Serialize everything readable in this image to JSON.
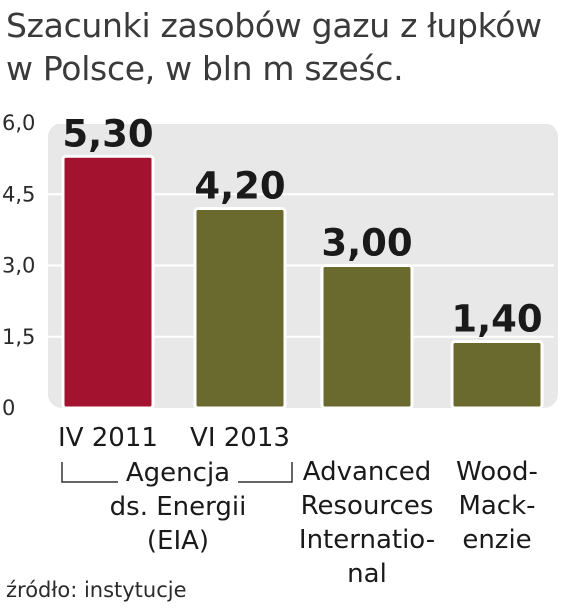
{
  "title_lines": [
    "Szacunki zasobów gazu z łupków",
    "w Polsce, w bln m sześc."
  ],
  "source": "źródło: instytucje",
  "chart_data": {
    "type": "bar",
    "categories": [
      "IV 2011",
      "VI 2013",
      "Advanced Resources Internatio- nal",
      "Wood- Mack- enzie"
    ],
    "values": [
      5.3,
      4.2,
      3.0,
      1.4
    ],
    "value_labels": [
      "5,30",
      "4,20",
      "3,00",
      "1,40"
    ],
    "ylim": [
      0,
      6.0
    ],
    "y_ticks": [
      0,
      1.5,
      3.0,
      4.5,
      6.0
    ],
    "y_tick_labels": [
      "0",
      "1,5",
      "3,0",
      "4,5",
      "6,0"
    ],
    "bar_colors": [
      "#a31330",
      "#6a6a2e",
      "#6a6a2e",
      "#6a6a2e"
    ],
    "category_labels": [
      [
        "IV 2011"
      ],
      [
        "VI 2013"
      ],
      [
        "Advanced",
        "Resources",
        "Internatio-",
        "nal"
      ],
      [
        "Wood-",
        "Mack-",
        "enzie"
      ]
    ],
    "group_label": [
      "Agencja",
      "ds. Energii",
      "(EIA)"
    ],
    "grid": true,
    "plot_background": "#e8e8e8"
  }
}
